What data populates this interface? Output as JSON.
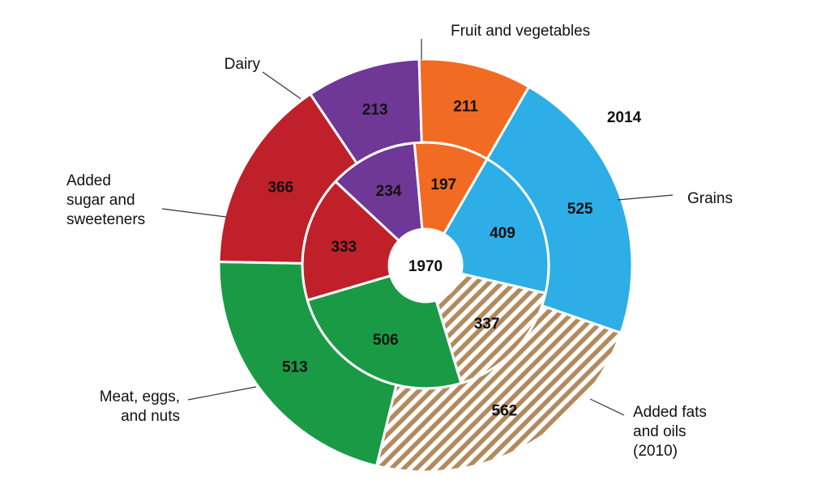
{
  "chart_data": {
    "type": "pie",
    "categories": [
      "Grains",
      "Added fats and oils (2010)",
      "Meat, eggs, and nuts",
      "Added sugar and sweeteners",
      "Dairy",
      "Fruit and vegetables"
    ],
    "series": [
      {
        "name": "1970",
        "values": [
          409,
          337,
          506,
          333,
          234,
          197
        ]
      },
      {
        "name": "2014",
        "values": [
          525,
          562,
          513,
          366,
          213,
          211
        ]
      }
    ],
    "ring_labels": {
      "inner": "1970",
      "outer": "2014"
    },
    "colors": [
      "#2eaee6",
      "#b38a5d",
      "#1a9a45",
      "#c0202a",
      "#6f3796",
      "#f26b22"
    ],
    "hatched_category": "Added fats and oils (2010)",
    "legend_text": [
      [
        "Grains"
      ],
      [
        "Added fats",
        "and oils",
        "(2010)"
      ],
      [
        "Meat, eggs,",
        "and nuts"
      ],
      [
        "Added",
        "sugar and",
        "sweeteners"
      ],
      [
        "Dairy"
      ],
      [
        "Fruit and vegetables"
      ]
    ]
  }
}
